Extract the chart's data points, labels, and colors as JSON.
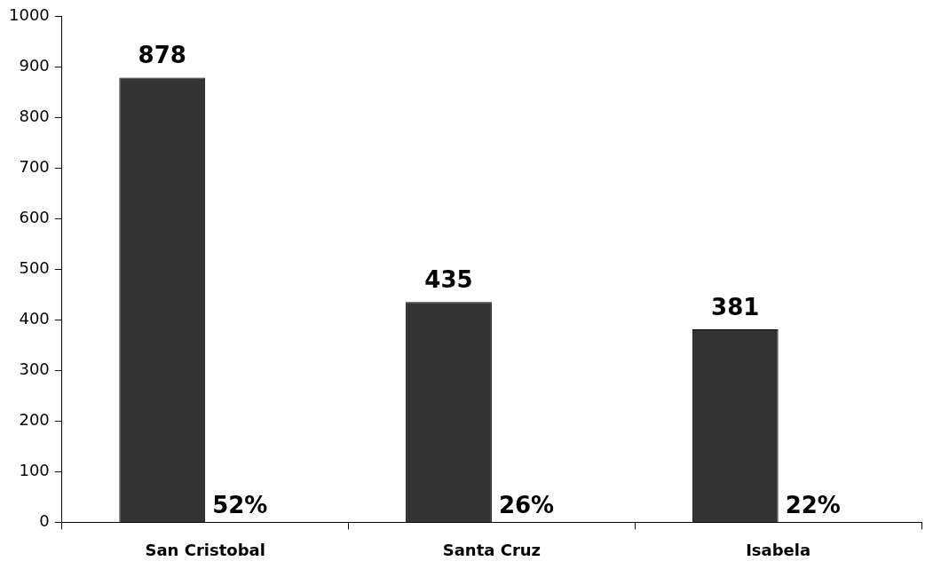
{
  "chart_data": {
    "type": "bar",
    "categories": [
      "San Cristobal",
      "Santa Cruz",
      "Isabela"
    ],
    "values": [
      878,
      435,
      381
    ],
    "color": "#333333",
    "ylim": [
      0,
      1000
    ],
    "yticks": [
      0,
      100,
      200,
      300,
      400,
      500,
      600,
      700,
      800,
      900,
      1000
    ],
    "grid": false,
    "legend": false,
    "data_labels": true,
    "annotations": [
      {
        "text": "52%",
        "x": "San Cristobal",
        "y": 0
      },
      {
        "text": "26%",
        "x": "Santa Cruz",
        "y": 0
      },
      {
        "text": "22%",
        "x": "Isabela",
        "y": 0
      }
    ]
  }
}
